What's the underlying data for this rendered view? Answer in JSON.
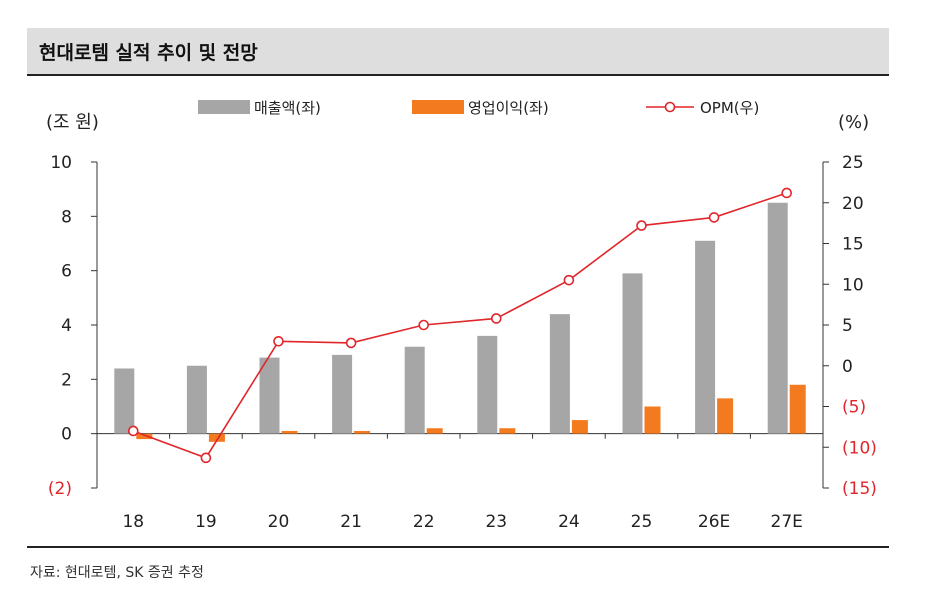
{
  "title": "현대로템 실적 추이 및 전망",
  "source": "자료: 현대로템, SK 증권 추정",
  "colors": {
    "revenue": "#a6a6a6",
    "op": "#f47a1f",
    "opm": "#e0262b",
    "negative": "#e0262b"
  },
  "chart_data": {
    "type": "bar",
    "categories": [
      "18",
      "19",
      "20",
      "21",
      "22",
      "23",
      "24",
      "25",
      "26E",
      "27E"
    ],
    "series": [
      {
        "name": "매출액(좌)",
        "axis": "left",
        "type": "bar",
        "values": [
          2.4,
          2.5,
          2.8,
          2.9,
          3.2,
          3.6,
          4.4,
          5.9,
          7.1,
          8.5
        ]
      },
      {
        "name": "영업이익(좌)",
        "axis": "left",
        "type": "bar",
        "values": [
          -0.2,
          -0.3,
          0.1,
          0.1,
          0.2,
          0.2,
          0.5,
          1.0,
          1.3,
          1.8
        ]
      },
      {
        "name": "OPM(우)",
        "axis": "right",
        "type": "line",
        "values": [
          -8.0,
          -11.3,
          3.0,
          2.8,
          5.0,
          5.8,
          10.5,
          17.2,
          18.2,
          21.2
        ]
      }
    ],
    "left_axis": {
      "label": "(조 원)",
      "ylim": [
        -2,
        10
      ],
      "ticks": [
        {
          "v": 10,
          "t": "10"
        },
        {
          "v": 8,
          "t": "8"
        },
        {
          "v": 6,
          "t": "6"
        },
        {
          "v": 4,
          "t": "4"
        },
        {
          "v": 2,
          "t": "2"
        },
        {
          "v": 0,
          "t": "0"
        },
        {
          "v": -2,
          "t": "(2)"
        }
      ]
    },
    "right_axis": {
      "label": "(%)",
      "ylim": [
        -15,
        25
      ],
      "ticks": [
        {
          "v": 25,
          "t": "25"
        },
        {
          "v": 20,
          "t": "20"
        },
        {
          "v": 15,
          "t": "15"
        },
        {
          "v": 10,
          "t": "10"
        },
        {
          "v": 5,
          "t": "5"
        },
        {
          "v": 0,
          "t": "0"
        },
        {
          "v": -5,
          "t": "(5)"
        },
        {
          "v": -10,
          "t": "(10)"
        },
        {
          "v": -15,
          "t": "(15)"
        }
      ]
    },
    "legend_position": "top",
    "grid": false
  }
}
